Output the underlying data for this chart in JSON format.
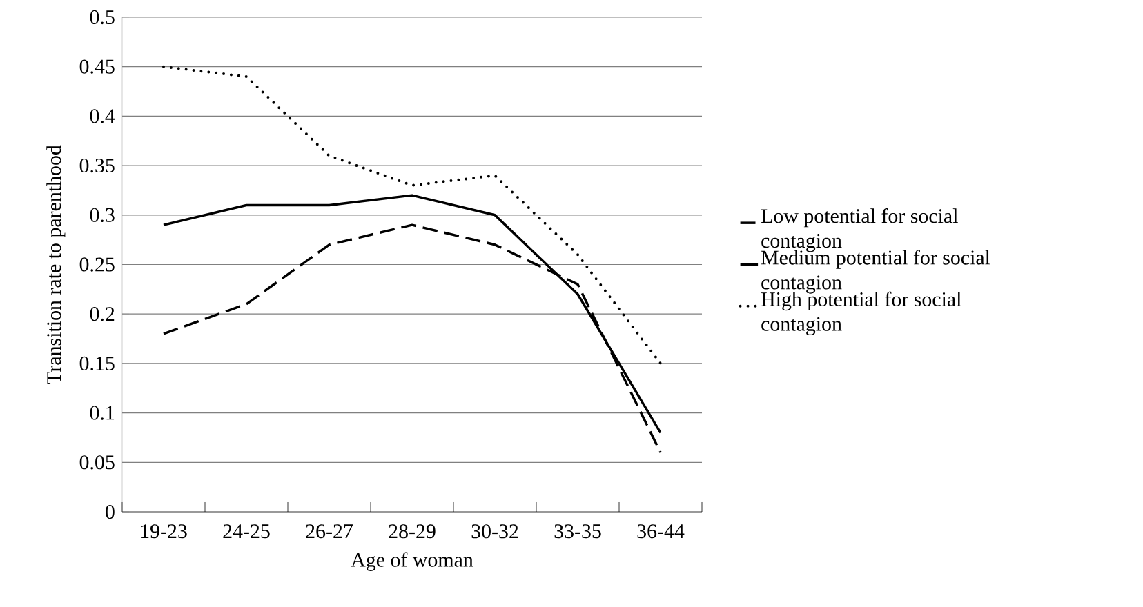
{
  "chart_data": {
    "type": "line",
    "xlabel": "Age of woman",
    "ylabel": "Transition rate to parenthood",
    "categories": [
      "19-23",
      "24-25",
      "26-27",
      "28-29",
      "30-32",
      "33-35",
      "36-44"
    ],
    "series": [
      {
        "name": "Low potential for social contagion",
        "color": "#000000",
        "line_style": "dashed",
        "values": [
          0.18,
          0.21,
          0.27,
          0.29,
          0.27,
          0.23,
          0.06
        ]
      },
      {
        "name": "Medium potential for social contagion",
        "color": "#000000",
        "line_style": "solid",
        "values": [
          0.29,
          0.31,
          0.31,
          0.32,
          0.3,
          0.22,
          0.08
        ]
      },
      {
        "name": "High potential for social contagion",
        "color": "#000000",
        "line_style": "dotted",
        "values": [
          0.45,
          0.44,
          0.36,
          0.33,
          0.34,
          0.26,
          0.15
        ]
      }
    ],
    "ylim": [
      0,
      0.5
    ],
    "yticks": [
      0,
      0.05,
      0.1,
      0.15,
      0.2,
      0.25,
      0.3,
      0.35,
      0.4,
      0.45,
      0.5
    ],
    "grid": "y",
    "legend": "right"
  }
}
